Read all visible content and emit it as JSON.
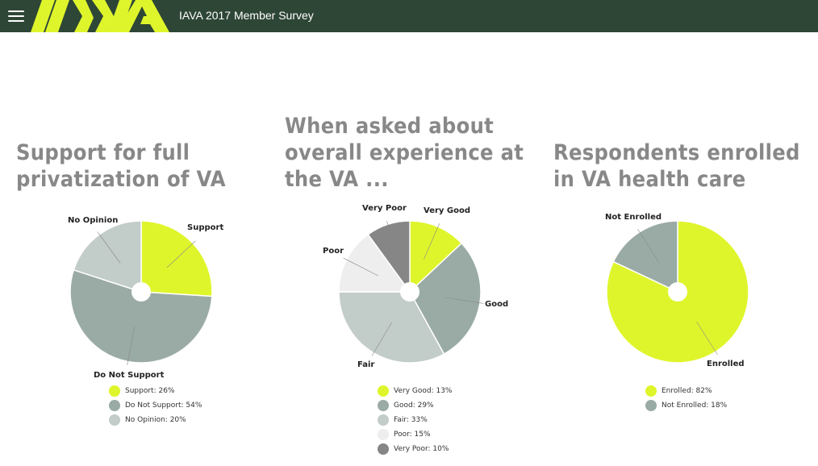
{
  "app": {
    "title": "IAVA 2017 Member Survey",
    "logo_text": "IAVA",
    "menu_icon": "hamburger-menu-icon",
    "colors": {
      "header": "#2e4636",
      "logo": "#dff52b"
    }
  },
  "chart_data": [
    {
      "type": "pie",
      "title": "Support for full privatization of VA",
      "title_lines": [
        "Support for full",
        "privatization of VA"
      ],
      "slices": [
        {
          "label": "Support",
          "value": 26,
          "color": "#dff52b",
          "legend": "Support: 26%"
        },
        {
          "label": "Do Not Support",
          "value": 54,
          "color": "#9aaba5",
          "legend": "Do Not Support: 54%"
        },
        {
          "label": "No Opinion",
          "value": 20,
          "color": "#c2ccc8",
          "legend": "No Opinion: 20%"
        }
      ],
      "legend_placement": "bottom"
    },
    {
      "type": "pie",
      "title": "When asked about overall experience at the VA ...",
      "title_lines": [
        "When asked about",
        "overall experience at",
        "the VA ..."
      ],
      "slices": [
        {
          "label": "Very Good",
          "value": 13,
          "color": "#dff52b",
          "legend": "Very Good: 13%"
        },
        {
          "label": "Good",
          "value": 29,
          "color": "#9aaba5",
          "legend": "Good: 29%"
        },
        {
          "label": "Fair",
          "value": 33,
          "color": "#c2ccc8",
          "legend": "Fair: 33%"
        },
        {
          "label": "Poor",
          "value": 15,
          "color": "#eeeeee",
          "legend": "Poor: 15%"
        },
        {
          "label": "Very Poor",
          "value": 10,
          "color": "#868686",
          "legend": "Very Poor: 10%"
        }
      ],
      "legend_placement": "bottom"
    },
    {
      "type": "pie",
      "title": "Respondents enrolled in VA health care",
      "title_lines": [
        "Respondents enrolled",
        "in VA health care"
      ],
      "slices": [
        {
          "label": "Enrolled",
          "value": 82,
          "color": "#dff52b",
          "legend": "Enrolled: 82%"
        },
        {
          "label": "Not Enrolled",
          "value": 18,
          "color": "#9aaba5",
          "legend": "Not Enrolled: 18%"
        }
      ],
      "legend_placement": "bottom"
    }
  ]
}
